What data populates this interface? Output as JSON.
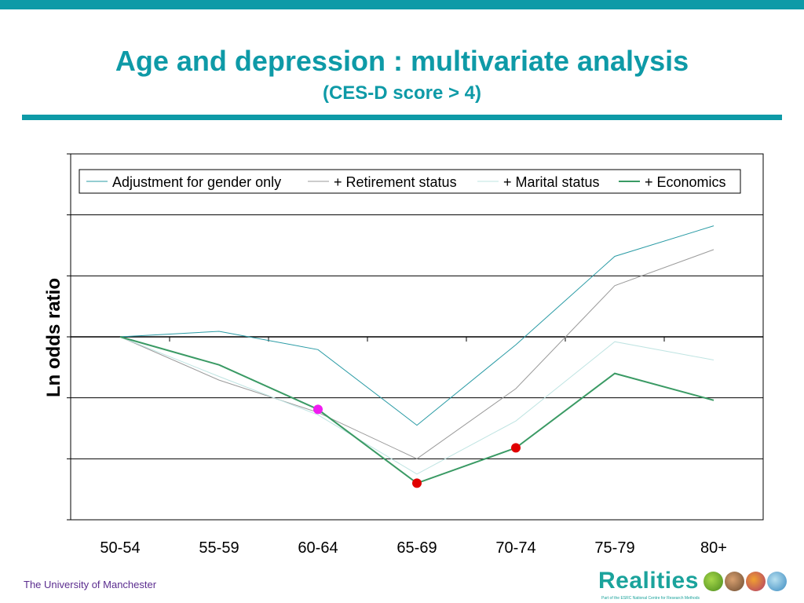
{
  "header": {
    "title": "Age and depression : multivariate analysis",
    "subtitle": "(CES-D score > 4)"
  },
  "footer": {
    "institution": "The University of Manchester",
    "logo_text": "Realities",
    "logo_tagline": "Part of the ESRC National Centre for Research Methods"
  },
  "colors": {
    "brand": "#0e9aa7",
    "footer_text": "#5b2d8f",
    "logo": "#1ba39c"
  },
  "chart_data": {
    "type": "line",
    "title": "",
    "xlabel": "",
    "ylabel": "Ln odds ratio",
    "categories": [
      "50-54",
      "55-59",
      "60-64",
      "65-69",
      "70-74",
      "75-79",
      "80+"
    ],
    "ylim": [
      -3,
      3
    ],
    "grid": true,
    "legend_position": "top",
    "series": [
      {
        "name": "Adjustment for gender only",
        "color": "#2a9ba5",
        "width": 1,
        "values": [
          0,
          0.09,
          -0.21,
          -1.45,
          -0.13,
          1.32,
          1.82
        ]
      },
      {
        "name": "+ Retirement status",
        "color": "#9a9a9a",
        "width": 1,
        "values": [
          0,
          -0.71,
          -1.24,
          -2.0,
          -0.85,
          0.84,
          1.43
        ]
      },
      {
        "name": "+ Marital status",
        "color": "#bfe4e2",
        "width": 1,
        "values": [
          0,
          -0.65,
          -1.28,
          -2.25,
          -1.38,
          -0.08,
          -0.38
        ]
      },
      {
        "name": "+ Economics",
        "color": "#3a9a64",
        "width": 2,
        "values": [
          0,
          -0.46,
          -1.19,
          -2.4,
          -1.82,
          -0.6,
          -1.04
        ]
      }
    ],
    "markers": [
      {
        "series": 3,
        "category": "60-64",
        "color": "#f01cf0"
      },
      {
        "series": 3,
        "category": "65-69",
        "color": "#e00000"
      },
      {
        "series": 3,
        "category": "70-74",
        "color": "#e00000"
      }
    ]
  }
}
